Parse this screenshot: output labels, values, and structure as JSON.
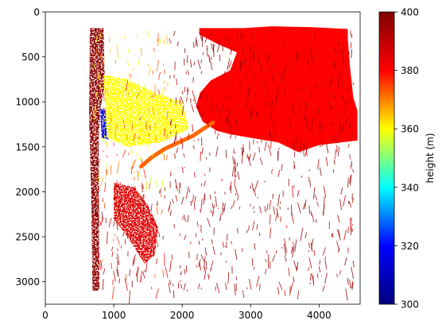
{
  "chart_data": {
    "type": "heatmap",
    "title": "",
    "xlabel": "",
    "ylabel": "",
    "xlim": [
      0,
      4600
    ],
    "ylim": [
      3250,
      0
    ],
    "x_ticks": [
      0,
      1000,
      2000,
      3000,
      4000
    ],
    "y_ticks": [
      0,
      500,
      1000,
      1500,
      2000,
      2500,
      3000
    ],
    "grid": false,
    "colorbar": {
      "label": "height (m)",
      "min": 300,
      "max": 400,
      "ticks": [
        300,
        320,
        340,
        360,
        380,
        400
      ],
      "colormap": "jet",
      "stops": [
        "#00007f",
        "#0000ff",
        "#00ffff",
        "#ffff00",
        "#ff0000",
        "#7f0000"
      ]
    },
    "regions": [
      {
        "name": "lake",
        "value": 380,
        "polygon": [
          [
            2250,
            180
          ],
          [
            2900,
            180
          ],
          [
            3300,
            160
          ],
          [
            3900,
            170
          ],
          [
            4420,
            190
          ],
          [
            4420,
            300
          ],
          [
            4450,
            600
          ],
          [
            4500,
            950
          ],
          [
            4560,
            1100
          ],
          [
            4560,
            1430
          ],
          [
            4000,
            1480
          ],
          [
            3700,
            1560
          ],
          [
            3400,
            1450
          ],
          [
            3000,
            1400
          ],
          [
            2700,
            1360
          ],
          [
            2500,
            1320
          ],
          [
            2300,
            1220
          ],
          [
            2200,
            1050
          ],
          [
            2260,
            900
          ],
          [
            2420,
            760
          ],
          [
            2700,
            650
          ],
          [
            2800,
            450
          ],
          [
            2500,
            350
          ],
          [
            2250,
            250
          ]
        ]
      },
      {
        "name": "channel",
        "value": 372,
        "polyline": [
          [
            1400,
            1720
          ],
          [
            1550,
            1620
          ],
          [
            1750,
            1520
          ],
          [
            1950,
            1450
          ],
          [
            2150,
            1380
          ],
          [
            2350,
            1280
          ],
          [
            2450,
            1230
          ]
        ]
      },
      {
        "name": "dark-red-strip",
        "value": 398,
        "polygon": [
          [
            650,
            180
          ],
          [
            850,
            180
          ],
          [
            870,
            800
          ],
          [
            800,
            1100
          ],
          [
            780,
            1500
          ],
          [
            790,
            3100
          ],
          [
            690,
            3100
          ],
          [
            670,
            2000
          ],
          [
            640,
            1200
          ]
        ]
      },
      {
        "name": "blue-patch",
        "value": 312,
        "polygon": [
          [
            800,
            1080
          ],
          [
            900,
            1080
          ],
          [
            950,
            1300
          ],
          [
            930,
            1420
          ],
          [
            820,
            1400
          ]
        ]
      },
      {
        "name": "lower-fan",
        "value": 385,
        "polygon": [
          [
            1000,
            1900
          ],
          [
            1300,
            1950
          ],
          [
            1500,
            2150
          ],
          [
            1650,
            2400
          ],
          [
            1600,
            2700
          ],
          [
            1450,
            2800
          ],
          [
            1200,
            2500
          ],
          [
            1000,
            2300
          ]
        ]
      },
      {
        "name": "upper-fan",
        "value": 360,
        "polygon": [
          [
            850,
            700
          ],
          [
            1200,
            750
          ],
          [
            1600,
            900
          ],
          [
            2000,
            1000
          ],
          [
            2100,
            1300
          ],
          [
            1700,
            1450
          ],
          [
            1200,
            1500
          ],
          [
            900,
            1400
          ]
        ]
      }
    ]
  }
}
